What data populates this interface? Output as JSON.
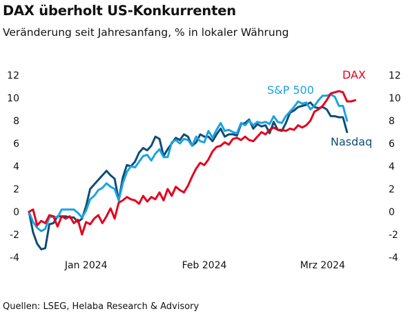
{
  "title": "DAX überholt US-Konkurrenten",
  "subtitle": "Veränderung seit Jahresanfang, % in lokaler Währung",
  "source": "Quellen: LSEG, Helaba Research & Advisory",
  "colors": {
    "dax": "#e3001b",
    "sp500": "#1aa3e0",
    "nasdaq": "#0f4c75",
    "text": "#111111"
  },
  "chart_data": {
    "type": "line",
    "ylim": [
      -4,
      12
    ],
    "yticks": [
      -4,
      -2,
      0,
      2,
      4,
      6,
      8,
      10,
      12
    ],
    "ytick_labels": [
      "-4",
      "-2",
      "0",
      "2",
      "4",
      "6",
      "8",
      "10",
      "12"
    ],
    "xlim": [
      0,
      87
    ],
    "x_tick_positions": [
      14,
      43,
      72
    ],
    "x_tick_labels": [
      "Jan 2024",
      "Feb 2024",
      "Mrz 2024"
    ],
    "grid": false,
    "legend": "inline labels",
    "series": [
      {
        "name": "DAX",
        "key": "dax",
        "values": [
          0,
          0.2,
          -1.2,
          -0.8,
          -1.0,
          -0.3,
          -0.4,
          -1.3,
          -0.4,
          -0.6,
          -0.4,
          -1.0,
          -0.7,
          -2.0,
          -0.9,
          -1.1,
          -0.6,
          -0.3,
          -1.0,
          -0.4,
          0.3,
          -0.6,
          0.8,
          1.0,
          1.3,
          1.1,
          1.0,
          0.7,
          1.4,
          0.9,
          1.3,
          1.1,
          1.7,
          1.0,
          2.0,
          1.4,
          2.2,
          1.9,
          1.7,
          2.3,
          3.1,
          3.8,
          4.3,
          4.1,
          4.6,
          5.3,
          5.7,
          5.8,
          6.1,
          5.9,
          6.4,
          6.5,
          6.3,
          6.6,
          6.3,
          6.2,
          6.6,
          7.0,
          6.8,
          7.2,
          7.4,
          7.2,
          7.2,
          7.1,
          7.3,
          7.2,
          7.6,
          7.4,
          7.6,
          8.0,
          8.8,
          9.0,
          9.3,
          9.8,
          10.4,
          10.5,
          10.6,
          10.5,
          9.7,
          9.7,
          9.8
        ]
      },
      {
        "name": "S&P 500",
        "key": "sp500",
        "values": [
          0,
          -0.9,
          -1.4,
          -1.7,
          -1.5,
          -0.5,
          -0.4,
          -0.5,
          0.2,
          0.2,
          0.2,
          0.2,
          -0.1,
          -0.5,
          0.1,
          1.1,
          1.4,
          1.9,
          2.1,
          2.5,
          2.2,
          2.0,
          1.0,
          2.5,
          3.5,
          4.0,
          3.9,
          4.4,
          4.9,
          5.0,
          4.5,
          5.1,
          5.5,
          4.8,
          4.8,
          6.1,
          6.3,
          6.0,
          6.4,
          6.3,
          5.8,
          6.6,
          6.2,
          6.1,
          7.1,
          6.5,
          7.2,
          7.8,
          7.1,
          7.2,
          7.0,
          6.9,
          7.8,
          7.6,
          8.0,
          7.6,
          7.9,
          7.8,
          7.9,
          7.7,
          8.4,
          7.9,
          7.8,
          8.4,
          8.8,
          9.2,
          9.7,
          9.5,
          9.6,
          9.0,
          9.3,
          9.8,
          10.2,
          10.2,
          10.3,
          10.1,
          9.3,
          9.3,
          8.0
        ]
      },
      {
        "name": "Nasdaq",
        "key": "nasdaq",
        "values": [
          0,
          -1.8,
          -2.8,
          -3.3,
          -3.2,
          -1.1,
          -1.0,
          -0.4,
          -0.4,
          -0.4,
          -0.5,
          -0.5,
          -0.9,
          -0.6,
          0.5,
          2.0,
          2.4,
          2.8,
          3.2,
          3.6,
          3.2,
          2.9,
          1.0,
          3.0,
          4.1,
          4.0,
          4.4,
          5.2,
          5.6,
          5.4,
          5.8,
          6.6,
          6.4,
          4.9,
          5.5,
          6.0,
          6.5,
          6.3,
          6.8,
          6.6,
          5.8,
          6.1,
          6.8,
          6.6,
          6.6,
          6.2,
          6.8,
          7.3,
          6.6,
          6.8,
          6.8,
          6.7,
          7.7,
          7.8,
          8.1,
          7.3,
          7.7,
          7.5,
          7.6,
          6.9,
          7.9,
          7.2,
          7.1,
          7.8,
          8.7,
          8.9,
          9.2,
          9.3,
          9.4,
          9.6,
          9.2,
          9.1,
          9.2,
          9.0,
          8.4,
          8.4,
          8.3,
          8.3,
          7.0
        ]
      }
    ],
    "labels": {
      "dax": "DAX",
      "sp500": "S&P 500",
      "nasdaq": "Nasdaq"
    }
  }
}
